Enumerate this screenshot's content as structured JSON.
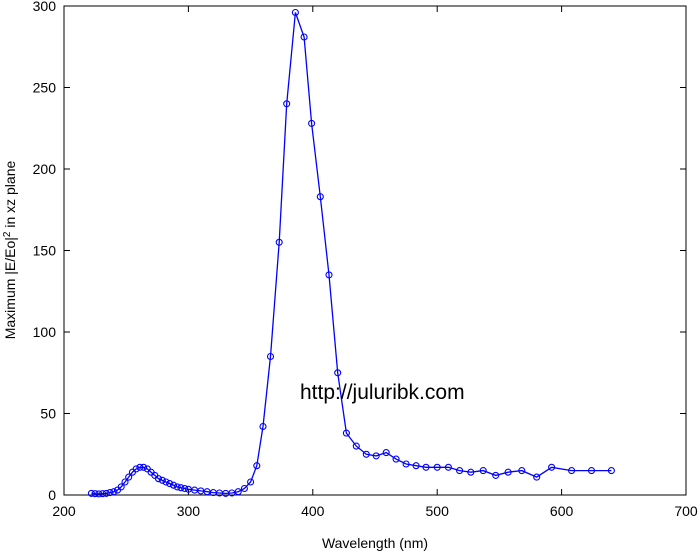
{
  "chart_data": {
    "type": "line",
    "title": "",
    "xlabel": "Wavelength (nm)",
    "ylabel_prefix": "Maximum |E/Eo|",
    "ylabel_sup": "2",
    "ylabel_suffix": " in xz plane",
    "xlim": [
      200,
      700
    ],
    "ylim": [
      0,
      300
    ],
    "xticks": [
      200,
      300,
      400,
      500,
      600,
      700
    ],
    "yticks": [
      0,
      50,
      100,
      150,
      200,
      250,
      300
    ],
    "grid": false,
    "legend": "none",
    "series_color": "#0000ff",
    "marker": "open-circle",
    "annotation": "http://juluribk.com",
    "series": [
      {
        "x": [
          222,
          225,
          228,
          231,
          234,
          237,
          240,
          243,
          246,
          249,
          252,
          255,
          258,
          261,
          264,
          267,
          270,
          273,
          276,
          279,
          282,
          285,
          288,
          291,
          294,
          297,
          300,
          305,
          310,
          315,
          320,
          325,
          330,
          335,
          340,
          345,
          350,
          355,
          360,
          366,
          373,
          379,
          386,
          393,
          399,
          406,
          413,
          420,
          427,
          435,
          443,
          451,
          459,
          467,
          475,
          483,
          491,
          500,
          509,
          518,
          527,
          537,
          547,
          557,
          568,
          580,
          592,
          608,
          624,
          640
        ],
        "y": [
          1,
          0.8,
          0.7,
          0.8,
          1,
          1.5,
          2,
          3,
          5,
          8,
          11,
          14,
          16,
          17,
          17,
          16,
          14,
          12,
          10,
          9,
          8,
          7,
          6,
          5,
          4.5,
          4,
          3.5,
          3,
          2.5,
          2,
          1.5,
          1.2,
          1,
          1.2,
          2,
          4,
          8,
          18,
          42,
          85,
          155,
          240,
          296,
          281,
          228,
          183,
          135,
          75,
          38,
          30,
          25,
          24,
          26,
          22,
          19,
          18,
          17,
          17,
          17,
          15,
          14,
          15,
          12,
          14,
          15,
          11,
          17,
          15,
          15,
          15
        ]
      }
    ]
  }
}
